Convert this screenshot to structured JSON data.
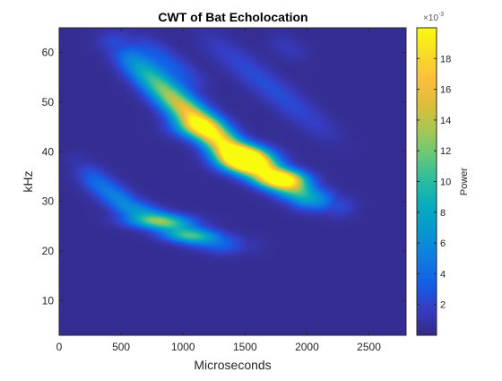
{
  "chart_data": {
    "type": "heatmap",
    "title": "CWT of Bat Echolocation",
    "xlabel": "Microseconds",
    "ylabel": "kHz",
    "xlim": [
      0,
      2800
    ],
    "ylim": [
      3,
      65
    ],
    "x_ticks": [
      0,
      500,
      1000,
      1500,
      2000,
      2500
    ],
    "y_ticks": [
      10,
      20,
      30,
      40,
      50,
      60
    ],
    "colormap": "parula",
    "colorbar": {
      "label": "Power",
      "exponent_label": "×10",
      "exponent_value": "-3",
      "range": [
        0,
        20
      ],
      "ticks": [
        2,
        4,
        6,
        8,
        10,
        12,
        14,
        16,
        18
      ]
    },
    "background_value": 0.3,
    "ridges": [
      {
        "points": [
          [
            150,
            38
          ],
          [
            300,
            34
          ],
          [
            550,
            29
          ],
          [
            850,
            25.5
          ],
          [
            1100,
            23
          ],
          [
            1300,
            21.5
          ],
          [
            1550,
            21
          ]
        ],
        "peak": 6.5,
        "width_khz": 1.4
      },
      {
        "points": [
          [
            450,
            62
          ],
          [
            700,
            56
          ],
          [
            950,
            50
          ],
          [
            1150,
            45.5
          ],
          [
            1350,
            41
          ],
          [
            1550,
            37.5
          ],
          [
            1800,
            34
          ],
          [
            2000,
            31
          ],
          [
            2250,
            29
          ]
        ],
        "peak": 19,
        "width_khz": 1.6
      },
      {
        "points": [
          [
            600,
            64
          ],
          [
            800,
            60
          ],
          [
            1000,
            56
          ],
          [
            1200,
            52
          ]
        ],
        "peak": 2.4,
        "width_khz": 1.3
      },
      {
        "points": [
          [
            1100,
            65
          ],
          [
            1400,
            59
          ],
          [
            1700,
            53
          ],
          [
            2000,
            47
          ],
          [
            2300,
            41
          ]
        ],
        "peak": 2.2,
        "width_khz": 1.6
      },
      {
        "points": [
          [
            1700,
            64
          ],
          [
            2000,
            58
          ]
        ],
        "peak": 1.0,
        "width_khz": 1.4
      }
    ],
    "hotspots": [
      {
        "x": 1500,
        "y": 38.5,
        "sx": 140,
        "sy": 1.6,
        "value": 19
      },
      {
        "x": 1800,
        "y": 34.5,
        "sx": 130,
        "sy": 1.2,
        "value": 12
      },
      {
        "x": 1100,
        "y": 45,
        "sx": 140,
        "sy": 1.5,
        "value": 6
      },
      {
        "x": 800,
        "y": 26,
        "sx": 180,
        "sy": 1.0,
        "value": 6.5
      },
      {
        "x": 1050,
        "y": 23,
        "sx": 140,
        "sy": 0.9,
        "value": 5
      }
    ]
  }
}
